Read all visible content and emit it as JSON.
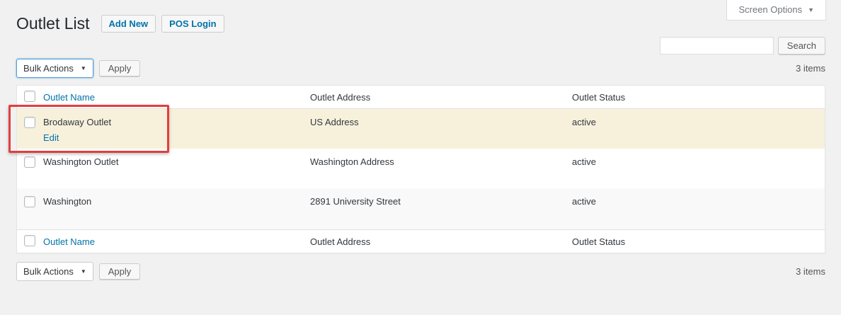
{
  "page": {
    "title": "Outlet List"
  },
  "header_actions": {
    "add_new": "Add New",
    "pos_login": "POS Login"
  },
  "screen_options": {
    "label": "Screen Options",
    "caret": "▼"
  },
  "search": {
    "value": "",
    "placeholder": "",
    "button": "Search"
  },
  "toolbar_top": {
    "bulk_actions": "Bulk Actions",
    "caret": "▼",
    "apply": "Apply",
    "count": "3 items"
  },
  "toolbar_bottom": {
    "bulk_actions": "Bulk Actions",
    "caret": "▼",
    "apply": "Apply",
    "count": "3 items"
  },
  "table": {
    "headers": {
      "name": "Outlet Name",
      "address": "Outlet Address",
      "status": "Outlet Status"
    },
    "rows": [
      {
        "name": "Brodaway Outlet",
        "edit": "Edit",
        "address": "US Address",
        "status": "active",
        "highlighted": true
      },
      {
        "name": "Washington Outlet",
        "address": "Washington Address",
        "status": "active",
        "highlighted": false
      },
      {
        "name": "Washington",
        "address": "2891 University Street",
        "status": "active",
        "highlighted": false
      }
    ]
  },
  "colors": {
    "accent": "#0073aa",
    "highlight_row": "#f7f1dc",
    "alt_row": "#f9f9f9",
    "annotation": "#e23e3e"
  }
}
